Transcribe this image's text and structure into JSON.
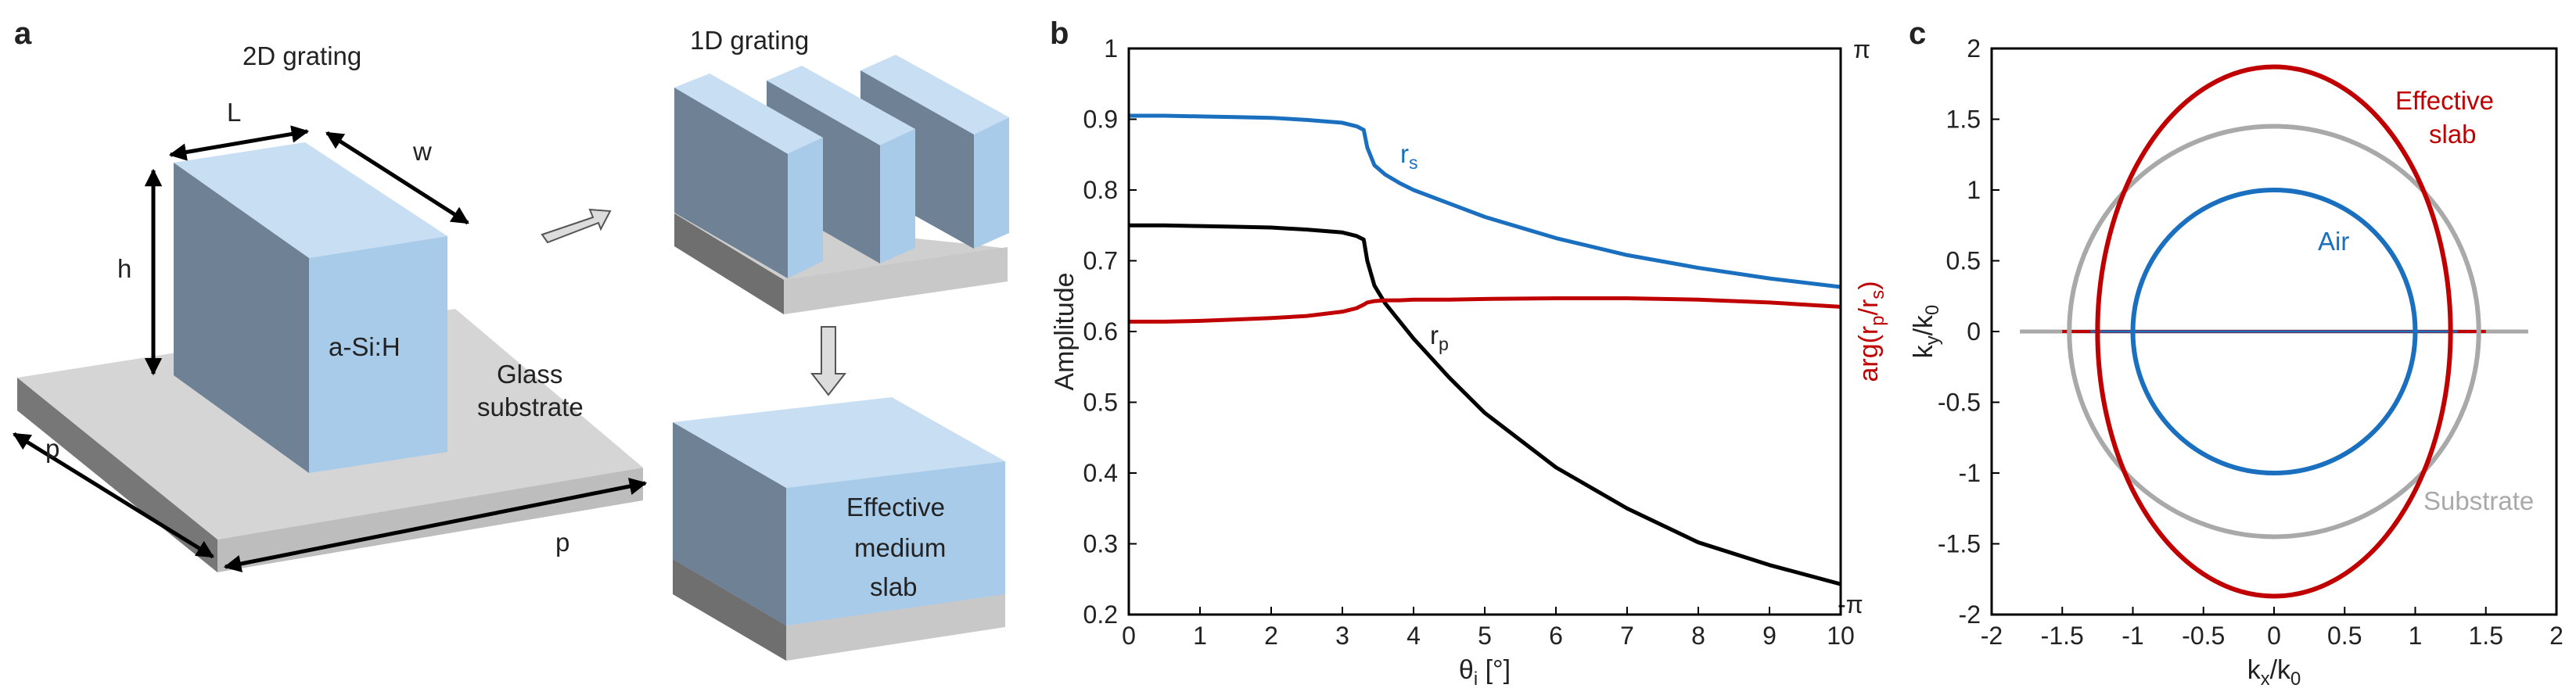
{
  "panels": {
    "a": {
      "label": "a",
      "title_2d": "2D grating",
      "title_1d": "1D grating",
      "dim_L": "L",
      "dim_w": "w",
      "dim_h": "h",
      "dim_p1": "p",
      "dim_p2": "p",
      "material": "a-Si:H",
      "substrate_l1": "Glass",
      "substrate_l2": "substrate",
      "slab_l1": "Effective",
      "slab_l2": "medium",
      "slab_l3": "slab"
    },
    "b": {
      "label": "b"
    },
    "c": {
      "label": "c"
    }
  },
  "colors": {
    "rs": "#1a6fbf",
    "rp": "#000000",
    "arg": "#c00000",
    "air": "#1a6fbf",
    "effective_slab": "#c00000",
    "substrate": "#a9a9a9",
    "block_face": "#a9cbea",
    "block_side": "#6e8195",
    "block_top": "#c8def3",
    "glass_top": "#d5d5d5",
    "glass_front": "#bdbdbd",
    "glass_side": "#777777"
  },
  "chart_data": [
    {
      "type": "line",
      "xlabel": "θi [°]",
      "xlabel_main": "θ",
      "xlabel_sub": "i",
      "xlabel_unit": " [°]",
      "ylabel": "Amplitude",
      "ylabel_right": "arg(rp/rs)",
      "ylabel_right_parts": {
        "pre": "arg(r",
        "sub1": "p",
        "mid": "/r",
        "sub2": "s",
        "post": ")"
      },
      "xlim": [
        0,
        10
      ],
      "ylim": [
        0.2,
        1.0
      ],
      "ylim_right_labels": [
        "-π",
        "π"
      ],
      "xticks": [
        "0",
        "1",
        "2",
        "3",
        "4",
        "5",
        "6",
        "7",
        "8",
        "9",
        "10"
      ],
      "yticks": [
        "0.2",
        "0.3",
        "0.4",
        "0.5",
        "0.6",
        "0.7",
        "0.8",
        "0.9",
        "1"
      ],
      "x": [
        0,
        0.5,
        1,
        1.5,
        2,
        2.5,
        3,
        3.2,
        3.3,
        3.35,
        3.45,
        3.6,
        3.8,
        4,
        4.5,
        5,
        6,
        7,
        8,
        9,
        10
      ],
      "series": [
        {
          "name": "rs",
          "label_main": "r",
          "label_sub": "s",
          "values": [
            0.905,
            0.905,
            0.904,
            0.903,
            0.902,
            0.899,
            0.895,
            0.89,
            0.885,
            0.86,
            0.835,
            0.822,
            0.81,
            0.8,
            0.781,
            0.762,
            0.732,
            0.708,
            0.69,
            0.675,
            0.663
          ]
        },
        {
          "name": "rp",
          "label_main": "r",
          "label_sub": "p",
          "values": [
            0.75,
            0.75,
            0.749,
            0.748,
            0.747,
            0.744,
            0.74,
            0.735,
            0.73,
            0.7,
            0.665,
            0.64,
            0.615,
            0.59,
            0.535,
            0.485,
            0.408,
            0.35,
            0.302,
            0.27,
            0.243
          ]
        },
        {
          "name": "arg(rp/rs)",
          "axis": "right",
          "values": [
            0.614,
            0.614,
            0.615,
            0.617,
            0.619,
            0.622,
            0.628,
            0.633,
            0.638,
            0.641,
            0.643,
            0.644,
            0.644,
            0.645,
            0.645,
            0.646,
            0.647,
            0.647,
            0.645,
            0.641,
            0.635
          ]
        }
      ]
    },
    {
      "type": "line",
      "xlabel": "kx/k0",
      "xlabel_parts": {
        "pre": "k",
        "sub1": "x",
        "mid": "/k",
        "sub2": "0"
      },
      "ylabel": "ky/k0",
      "ylabel_parts": {
        "pre": "k",
        "sub1": "y",
        "mid": "/k",
        "sub2": "0"
      },
      "xlim": [
        -2,
        2
      ],
      "ylim": [
        -2,
        2
      ],
      "xticks": [
        "-2",
        "-1.5",
        "-1",
        "-0.5",
        "0",
        "0.5",
        "1",
        "1.5",
        "2"
      ],
      "yticks": [
        "-2",
        "-1.5",
        "-1",
        "-0.5",
        "0",
        "0.5",
        "1",
        "1.5",
        "2"
      ],
      "series": [
        {
          "name": "Air",
          "shape": "circle",
          "center": [
            0,
            0
          ],
          "rx": 1.0,
          "ry": 1.0
        },
        {
          "name": "Effective slab",
          "label_lines": [
            "Effective",
            "slab"
          ],
          "shape": "ellipse",
          "center": [
            0,
            0
          ],
          "rx": 1.25,
          "ry": 1.87
        },
        {
          "name": "Substrate",
          "shape": "circle",
          "center": [
            0,
            0
          ],
          "rx": 1.45,
          "ry": 1.45
        }
      ],
      "axis_lines": [
        {
          "color": "substrate",
          "x_range": [
            -1.8,
            1.8
          ],
          "y": 0
        },
        {
          "color": "effective_slab",
          "x_range": [
            -1.5,
            1.5
          ],
          "y": 0
        },
        {
          "color": "air",
          "x_range": [
            -1.3,
            1.3
          ],
          "y": 0
        }
      ]
    }
  ]
}
